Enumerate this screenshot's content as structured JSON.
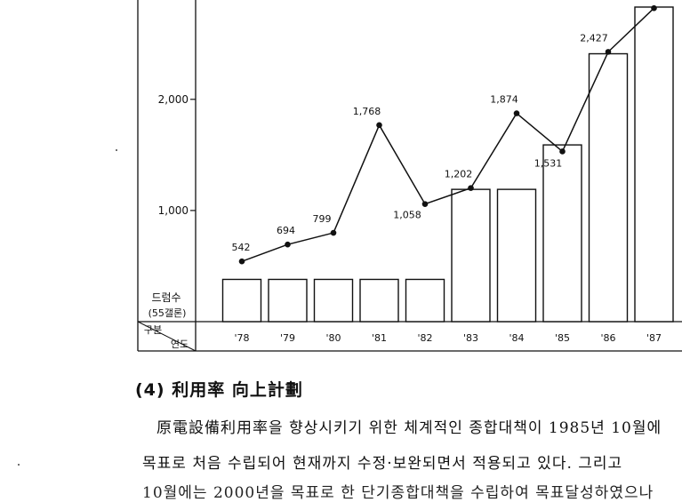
{
  "chart_data": {
    "type": "bar+line",
    "categories": [
      "'78",
      "'79",
      "'80",
      "'81",
      "'82",
      "'83",
      "'84",
      "'85",
      "'86",
      "'87"
    ],
    "series": [
      {
        "kind": "line",
        "values": [
          542,
          694,
          799,
          1768,
          1058,
          1202,
          1874,
          1531,
          2427,
          2820
        ],
        "data_labels": [
          "542",
          "694",
          "799",
          "1,768",
          "1,058",
          "1,202",
          "1,874",
          "1,531",
          "2,427",
          ""
        ]
      },
      {
        "kind": "bar",
        "values": [
          380,
          380,
          380,
          380,
          380,
          1190,
          1190,
          1590,
          2410,
          2830
        ]
      }
    ],
    "ylim": [
      0,
      3050
    ],
    "y_ticks": [
      {
        "value": 1000,
        "label": "1,000"
      },
      {
        "value": 2000,
        "label": "2,000"
      }
    ],
    "y_unit_label": [
      "드럼수",
      "(55갤론)"
    ],
    "corner_header": {
      "top": "구분",
      "bottom": "연도"
    },
    "grid": false,
    "legend": "none"
  },
  "text": {
    "heading": "(4) 利用率 向上計劃",
    "line1": "原電設備利用率을 향상시키기 위한 체계적인 종합대책이 1985년 10월에",
    "line2": "목표로 처음 수립되어 현재까지 수정·보완되면서 적용되고 있다. 그리고",
    "line3": "10월에는 2000년을 목표로 한 단기종합대책을 수립하여 목표달성하였으나"
  }
}
